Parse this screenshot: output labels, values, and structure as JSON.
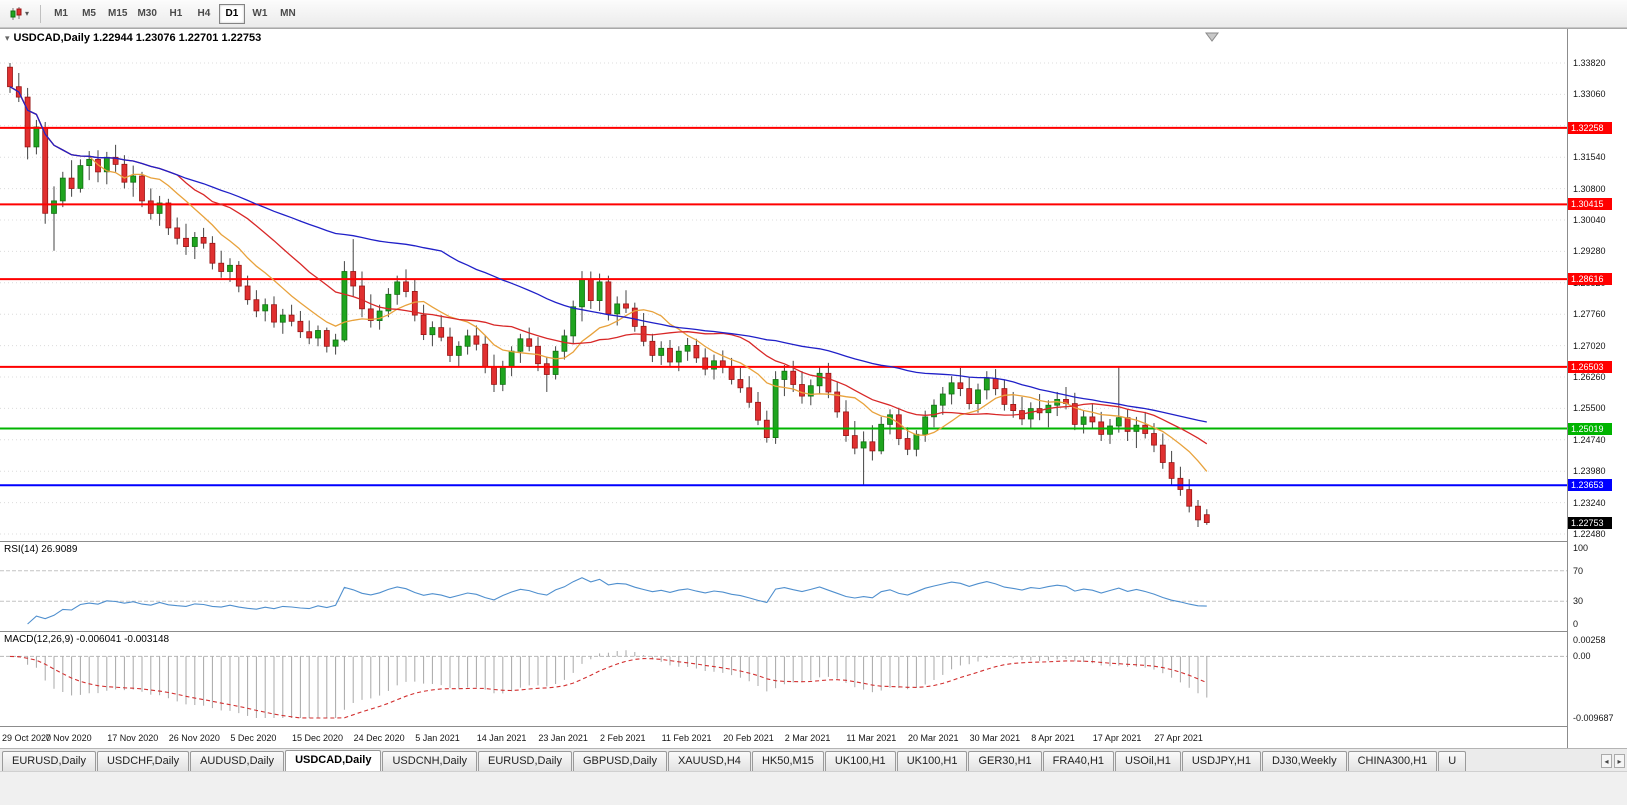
{
  "toolbar": {
    "timeframes": [
      {
        "label": "M1",
        "active": false
      },
      {
        "label": "M5",
        "active": false
      },
      {
        "label": "M15",
        "active": false
      },
      {
        "label": "M30",
        "active": false
      },
      {
        "label": "H1",
        "active": false
      },
      {
        "label": "H4",
        "active": false
      },
      {
        "label": "D1",
        "active": true
      },
      {
        "label": "W1",
        "active": false
      },
      {
        "label": "MN",
        "active": false
      }
    ]
  },
  "chart": {
    "symbol": "USDCAD",
    "period": "Daily",
    "title_line": "USDCAD,Daily 1.22944 1.23076 1.22701 1.22753",
    "ohlc": {
      "open": "1.22944",
      "high": "1.23076",
      "low": "1.22701",
      "close": "1.22753"
    }
  },
  "price_scale": {
    "ticks": [
      "1.33820",
      "1.33060",
      "1.32300",
      "1.31540",
      "1.30800",
      "1.30040",
      "1.29280",
      "1.28520",
      "1.27760",
      "1.27020",
      "1.26260",
      "1.25500",
      "1.24740",
      "1.23980",
      "1.23240",
      "1.22480"
    ]
  },
  "hlines": [
    {
      "price": 1.32258,
      "label": "1.32258",
      "color": "#FF0000"
    },
    {
      "price": 1.30415,
      "label": "1.30415",
      "color": "#FF0000"
    },
    {
      "price": 1.28616,
      "label": "1.28616",
      "color": "#FF0000"
    },
    {
      "price": 1.26503,
      "label": "1.26503",
      "color": "#FF0000"
    },
    {
      "price": 1.25019,
      "label": "1.25019",
      "color": "#00B400"
    },
    {
      "price": 1.23653,
      "label": "1.23653",
      "color": "#0000FF"
    }
  ],
  "current_price": {
    "value": 1.22753,
    "label": "1.22753",
    "color": "#000000"
  },
  "indicators": {
    "rsi": {
      "label": "RSI(14) 26.9089",
      "period": 14,
      "value": "26.9089",
      "color": "#4F8FCE",
      "levels": [
        {
          "v": 100,
          "label": "100"
        },
        {
          "v": 70,
          "label": "70"
        },
        {
          "v": 30,
          "label": "30"
        },
        {
          "v": 0,
          "label": "0"
        }
      ]
    },
    "macd": {
      "label": "MACD(12,26,9) -0.006041 -0.003148",
      "values": "-0.006041 -0.003148",
      "scale_top": "0.00258",
      "scale_zero": "0.00",
      "scale_bottom": "-0.009687",
      "hist_color": "#A8A8A8",
      "signal_color": "#D23030"
    }
  },
  "x_axis": {
    "bars_per_label": 7,
    "dates": [
      "29 Oct 2020",
      "7 Nov 2020",
      "17 Nov 2020",
      "26 Nov 2020",
      "5 Dec 2020",
      "15 Dec 2020",
      "24 Dec 2020",
      "5 Jan 2021",
      "14 Jan 2021",
      "23 Jan 2021",
      "2 Feb 2021",
      "11 Feb 2021",
      "20 Feb 2021",
      "2 Mar 2021",
      "11 Mar 2021",
      "20 Mar 2021",
      "30 Mar 2021",
      "8 Apr 2021",
      "17 Apr 2021",
      "27 Apr 2021"
    ]
  },
  "tabs": [
    {
      "label": "EURUSD,Daily",
      "active": false
    },
    {
      "label": "USDCHF,Daily",
      "active": false
    },
    {
      "label": "AUDUSD,Daily",
      "active": false
    },
    {
      "label": "USDCAD,Daily",
      "active": true
    },
    {
      "label": "USDCNH,Daily",
      "active": false
    },
    {
      "label": "EURUSD,Daily",
      "active": false
    },
    {
      "label": "GBPUSD,Daily",
      "active": false
    },
    {
      "label": "XAUUSD,H4",
      "active": false
    },
    {
      "label": "HK50,M15",
      "active": false
    },
    {
      "label": "UK100,H1",
      "active": false
    },
    {
      "label": "UK100,H1",
      "active": false
    },
    {
      "label": "GER30,H1",
      "active": false
    },
    {
      "label": "FRA40,H1",
      "active": false
    },
    {
      "label": "USOil,H1",
      "active": false
    },
    {
      "label": "USDJPY,H1",
      "active": false
    },
    {
      "label": "DJ30,Weekly",
      "active": false
    },
    {
      "label": "CHINA300,H1",
      "active": false
    },
    {
      "label": "U",
      "active": false
    }
  ],
  "tab_arrows": {
    "left": "◂",
    "right": "▸"
  },
  "colors": {
    "bull": "#1FA51F",
    "bull_border": "#127112",
    "bear": "#E03030",
    "bear_border": "#991414",
    "wick": "#444444",
    "ma_fast": "#E8A23C",
    "ma_mid": "#D82828",
    "ma_slow": "#2020C8",
    "grid": "#DCDCDC",
    "panel_border": "#8C8C8C"
  },
  "chart_data": {
    "type": "candlestick",
    "symbol": "USDCAD",
    "timeframe": "Daily",
    "title": "USDCAD,Daily",
    "price_axis": {
      "min": 1.2248,
      "max": 1.3382
    },
    "overlays": [
      {
        "name": "sma-fast",
        "period": 10,
        "color_key": "ma_fast"
      },
      {
        "name": "sma-mid",
        "period": 20,
        "color_key": "ma_mid"
      },
      {
        "name": "sma-slow",
        "period": 50,
        "color_key": "ma_slow"
      }
    ],
    "candles": [
      [
        1.3372,
        1.3382,
        1.331,
        1.3325
      ],
      [
        1.3325,
        1.3358,
        1.3288,
        1.33
      ],
      [
        1.33,
        1.3322,
        1.315,
        1.318
      ],
      [
        1.318,
        1.3245,
        1.3162,
        1.3228
      ],
      [
        1.3225,
        1.324,
        1.2995,
        1.302
      ],
      [
        1.302,
        1.3085,
        1.293,
        1.305
      ],
      [
        1.305,
        1.312,
        1.3035,
        1.3105
      ],
      [
        1.3105,
        1.3148,
        1.306,
        1.308
      ],
      [
        1.308,
        1.315,
        1.307,
        1.3135
      ],
      [
        1.3135,
        1.317,
        1.31,
        1.315
      ],
      [
        1.315,
        1.3172,
        1.3095,
        1.312
      ],
      [
        1.312,
        1.3168,
        1.309,
        1.3155
      ],
      [
        1.3155,
        1.3185,
        1.312,
        1.3138
      ],
      [
        1.3138,
        1.316,
        1.308,
        1.3095
      ],
      [
        1.3095,
        1.3135,
        1.306,
        1.311
      ],
      [
        1.311,
        1.312,
        1.3035,
        1.305
      ],
      [
        1.305,
        1.308,
        1.3005,
        1.302
      ],
      [
        1.302,
        1.3062,
        1.299,
        1.3045
      ],
      [
        1.3045,
        1.3055,
        1.2968,
        1.2985
      ],
      [
        1.2985,
        1.301,
        1.2945,
        1.296
      ],
      [
        1.296,
        1.2995,
        1.292,
        1.294
      ],
      [
        1.294,
        1.2975,
        1.291,
        1.2962
      ],
      [
        1.2962,
        1.2985,
        1.2935,
        1.2948
      ],
      [
        1.2948,
        1.2965,
        1.2885,
        1.29
      ],
      [
        1.29,
        1.293,
        1.2865,
        1.288
      ],
      [
        1.288,
        1.2912,
        1.2855,
        1.2895
      ],
      [
        1.2895,
        1.2905,
        1.283,
        1.2845
      ],
      [
        1.2845,
        1.287,
        1.28,
        1.2812
      ],
      [
        1.2812,
        1.2835,
        1.277,
        1.2785
      ],
      [
        1.2785,
        1.2815,
        1.276,
        1.28
      ],
      [
        1.28,
        1.282,
        1.2745,
        1.2758
      ],
      [
        1.2758,
        1.279,
        1.273,
        1.2775
      ],
      [
        1.2775,
        1.28,
        1.2748,
        1.276
      ],
      [
        1.276,
        1.2785,
        1.272,
        1.2735
      ],
      [
        1.2735,
        1.2762,
        1.2705,
        1.272
      ],
      [
        1.272,
        1.275,
        1.27,
        1.2738
      ],
      [
        1.2738,
        1.2745,
        1.2685,
        1.27
      ],
      [
        1.27,
        1.273,
        1.268,
        1.2715
      ],
      [
        1.2715,
        1.2905,
        1.271,
        1.288
      ],
      [
        1.288,
        1.2958,
        1.282,
        1.2845
      ],
      [
        1.2845,
        1.288,
        1.277,
        1.279
      ],
      [
        1.279,
        1.2825,
        1.2745,
        1.2762
      ],
      [
        1.2762,
        1.28,
        1.274,
        1.2785
      ],
      [
        1.2785,
        1.284,
        1.277,
        1.2825
      ],
      [
        1.2825,
        1.287,
        1.28,
        1.2855
      ],
      [
        1.2855,
        1.2885,
        1.2818,
        1.2832
      ],
      [
        1.2832,
        1.286,
        1.276,
        1.2775
      ],
      [
        1.2775,
        1.28,
        1.2715,
        1.2728
      ],
      [
        1.2728,
        1.276,
        1.27,
        1.2745
      ],
      [
        1.2745,
        1.2775,
        1.2712,
        1.2722
      ],
      [
        1.2722,
        1.2745,
        1.2662,
        1.2678
      ],
      [
        1.2678,
        1.2712,
        1.265,
        1.27
      ],
      [
        1.27,
        1.274,
        1.268,
        1.2725
      ],
      [
        1.2725,
        1.275,
        1.269,
        1.2705
      ],
      [
        1.2705,
        1.2725,
        1.2635,
        1.265
      ],
      [
        1.265,
        1.268,
        1.259,
        1.2608
      ],
      [
        1.2608,
        1.2665,
        1.2592,
        1.265
      ],
      [
        1.265,
        1.27,
        1.2628,
        1.2688
      ],
      [
        1.2688,
        1.273,
        1.266,
        1.2718
      ],
      [
        1.2718,
        1.2745,
        1.2688,
        1.27
      ],
      [
        1.27,
        1.2722,
        1.264,
        1.2658
      ],
      [
        1.2658,
        1.2675,
        1.259,
        1.2632
      ],
      [
        1.2632,
        1.27,
        1.262,
        1.2688
      ],
      [
        1.2688,
        1.274,
        1.2668,
        1.2725
      ],
      [
        1.2725,
        1.281,
        1.2705,
        1.2795
      ],
      [
        1.2795,
        1.2881,
        1.276,
        1.2862
      ],
      [
        1.2862,
        1.288,
        1.279,
        1.281
      ],
      [
        1.281,
        1.2875,
        1.2785,
        1.2855
      ],
      [
        1.2855,
        1.287,
        1.2762,
        1.2778
      ],
      [
        1.2778,
        1.282,
        1.275,
        1.2802
      ],
      [
        1.2802,
        1.2835,
        1.278,
        1.2792
      ],
      [
        1.2792,
        1.2805,
        1.2735,
        1.2748
      ],
      [
        1.2748,
        1.278,
        1.27,
        1.2712
      ],
      [
        1.2712,
        1.273,
        1.2662,
        1.2678
      ],
      [
        1.2678,
        1.2712,
        1.2655,
        1.2695
      ],
      [
        1.2695,
        1.2715,
        1.265,
        1.2662
      ],
      [
        1.2662,
        1.27,
        1.264,
        1.2688
      ],
      [
        1.2688,
        1.272,
        1.2665,
        1.2702
      ],
      [
        1.2702,
        1.2718,
        1.266,
        1.2672
      ],
      [
        1.2672,
        1.2695,
        1.263,
        1.2645
      ],
      [
        1.2645,
        1.268,
        1.262,
        1.2665
      ],
      [
        1.2665,
        1.269,
        1.2635,
        1.265
      ],
      [
        1.265,
        1.2672,
        1.2608,
        1.262
      ],
      [
        1.262,
        1.2648,
        1.2588,
        1.26
      ],
      [
        1.26,
        1.2628,
        1.2552,
        1.2565
      ],
      [
        1.2565,
        1.259,
        1.251,
        1.2522
      ],
      [
        1.2522,
        1.2545,
        1.2468,
        1.248
      ],
      [
        1.248,
        1.264,
        1.2465,
        1.262
      ],
      [
        1.262,
        1.2655,
        1.258,
        1.264
      ],
      [
        1.264,
        1.2665,
        1.259,
        1.2608
      ],
      [
        1.2608,
        1.264,
        1.2562,
        1.258
      ],
      [
        1.258,
        1.262,
        1.2558,
        1.2605
      ],
      [
        1.2605,
        1.265,
        1.2585,
        1.2635
      ],
      [
        1.2635,
        1.266,
        1.2575,
        1.259
      ],
      [
        1.259,
        1.2615,
        1.2528,
        1.2542
      ],
      [
        1.2542,
        1.257,
        1.247,
        1.2485
      ],
      [
        1.2485,
        1.252,
        1.244,
        1.2455
      ],
      [
        1.2455,
        1.2495,
        1.2365,
        1.247
      ],
      [
        1.247,
        1.251,
        1.2425,
        1.2448
      ],
      [
        1.2448,
        1.253,
        1.244,
        1.2512
      ],
      [
        1.2512,
        1.2548,
        1.2488,
        1.2535
      ],
      [
        1.2535,
        1.2552,
        1.2462,
        1.2478
      ],
      [
        1.2478,
        1.2505,
        1.2438,
        1.2452
      ],
      [
        1.2452,
        1.2498,
        1.2435,
        1.2488
      ],
      [
        1.2488,
        1.2545,
        1.247,
        1.253
      ],
      [
        1.253,
        1.2572,
        1.2505,
        1.2558
      ],
      [
        1.2558,
        1.2602,
        1.2535,
        1.2585
      ],
      [
        1.2585,
        1.2628,
        1.256,
        1.2612
      ],
      [
        1.2612,
        1.2648,
        1.258,
        1.2598
      ],
      [
        1.2598,
        1.2625,
        1.2548,
        1.2562
      ],
      [
        1.2562,
        1.261,
        1.254,
        1.2595
      ],
      [
        1.2595,
        1.264,
        1.2572,
        1.2622
      ],
      [
        1.2622,
        1.2645,
        1.2582,
        1.2598
      ],
      [
        1.2598,
        1.2618,
        1.2545,
        1.256
      ],
      [
        1.256,
        1.259,
        1.2528,
        1.2545
      ],
      [
        1.2545,
        1.2578,
        1.251,
        1.2525
      ],
      [
        1.2525,
        1.2565,
        1.2502,
        1.255
      ],
      [
        1.255,
        1.2585,
        1.2522,
        1.254
      ],
      [
        1.254,
        1.257,
        1.2505,
        1.2558
      ],
      [
        1.2558,
        1.259,
        1.2532,
        1.2572
      ],
      [
        1.2572,
        1.2602,
        1.2548,
        1.2562
      ],
      [
        1.2562,
        1.2588,
        1.2498,
        1.2512
      ],
      [
        1.2512,
        1.2545,
        1.249,
        1.253
      ],
      [
        1.253,
        1.256,
        1.2502,
        1.2518
      ],
      [
        1.2518,
        1.2542,
        1.2472,
        1.2488
      ],
      [
        1.2488,
        1.2525,
        1.2465,
        1.2508
      ],
      [
        1.2508,
        1.265,
        1.2492,
        1.2528
      ],
      [
        1.2528,
        1.2548,
        1.2472,
        1.2495
      ],
      [
        1.2495,
        1.253,
        1.2455,
        1.251
      ],
      [
        1.251,
        1.2542,
        1.2478,
        1.249
      ],
      [
        1.249,
        1.2515,
        1.2445,
        1.2462
      ],
      [
        1.2462,
        1.249,
        1.2405,
        1.242
      ],
      [
        1.242,
        1.2448,
        1.2365,
        1.2382
      ],
      [
        1.2382,
        1.241,
        1.234,
        1.2355
      ],
      [
        1.2355,
        1.238,
        1.23,
        1.2315
      ],
      [
        1.2315,
        1.233,
        1.2265,
        1.2282
      ],
      [
        1.22944,
        1.23076,
        1.22701,
        1.22753
      ]
    ]
  }
}
